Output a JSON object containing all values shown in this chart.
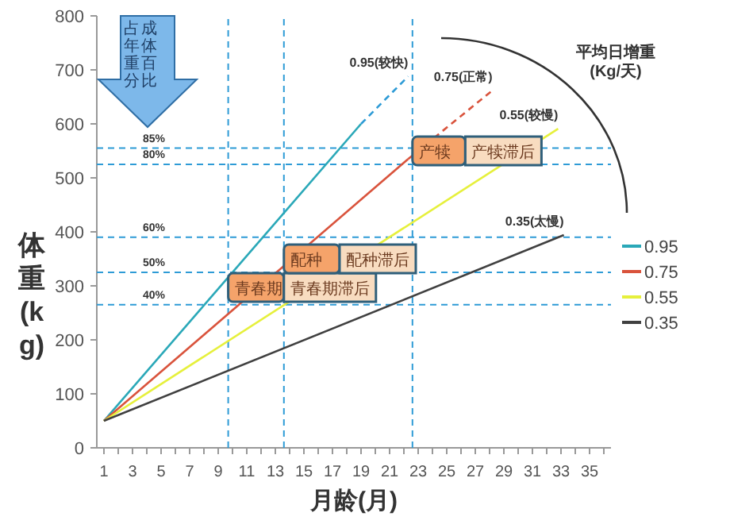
{
  "chart_data": {
    "type": "line",
    "xlabel": "月龄(月)",
    "ylabel": "体重(kg)",
    "xlim": [
      0.5,
      36.5
    ],
    "ylim": [
      0,
      800
    ],
    "xticks": [
      1,
      {
        "value": 2,
        "label": null
      },
      3,
      {
        "value": 4,
        "label": null
      },
      5,
      {
        "value": 6,
        "label": null
      },
      7,
      {
        "value": 8,
        "label": null
      },
      9,
      {
        "value": 10,
        "label": null
      },
      11,
      {
        "value": 12,
        "label": null
      },
      13,
      {
        "value": 14,
        "label": null
      },
      15,
      {
        "value": 16,
        "label": null
      },
      17,
      {
        "value": 18,
        "label": null
      },
      19,
      {
        "value": 20,
        "label": null
      },
      21,
      {
        "value": 22,
        "label": null
      },
      23,
      {
        "value": 24,
        "label": null
      },
      25,
      {
        "value": 26,
        "label": null
      },
      27,
      {
        "value": 28,
        "label": null
      },
      29,
      {
        "value": 30,
        "label": null
      },
      31,
      {
        "value": 32,
        "label": null
      },
      33,
      {
        "value": 34,
        "label": null
      },
      35,
      {
        "value": 36,
        "label": null
      }
    ],
    "yticks": [
      0,
      100,
      200,
      300,
      400,
      500,
      600,
      700,
      800
    ],
    "legend": "right",
    "grid": false,
    "series": [
      {
        "name": "0.95",
        "color": "#2aa8b8",
        "x": [
          1,
          19
        ],
        "values": [
          50,
          600
        ]
      },
      {
        "color": "#2e9bd6",
        "x": [
          19,
          22.3
        ],
        "values": [
          600,
          688
        ],
        "line_style": "dashed"
      },
      {
        "name": "0.75",
        "color": "#d9533c",
        "x": [
          1,
          22.3
        ],
        "values": [
          50,
          535
        ]
      },
      {
        "color": "#d9533c",
        "x": [
          22.3,
          28.2
        ],
        "values": [
          535,
          662
        ],
        "line_style": "dashed"
      },
      {
        "name": "0.55",
        "color": "#e6f03c",
        "x": [
          1,
          32.8
        ],
        "values": [
          50,
          591
        ]
      },
      {
        "name": "0.35",
        "color": "#404040",
        "x": [
          1,
          33.2
        ],
        "values": [
          50,
          394
        ]
      }
    ],
    "ref_lines": [
      {
        "axis": "y",
        "value": 555,
        "color": "#2e9bd6",
        "line_style": "dashed"
      },
      {
        "axis": "y",
        "value": 525,
        "color": "#2e9bd6",
        "line_style": "dashed"
      },
      {
        "axis": "y",
        "value": 390,
        "color": "#2e9bd6",
        "line_style": "dashed"
      },
      {
        "axis": "y",
        "value": 325,
        "color": "#2e9bd6",
        "line_style": "dashed"
      },
      {
        "axis": "y",
        "value": 265,
        "color": "#2e9bd6",
        "line_style": "dashed"
      },
      {
        "axis": "x",
        "value": 9.7,
        "color": "#2e9bd6",
        "line_style": "dashed"
      },
      {
        "axis": "x",
        "value": 13.6,
        "color": "#2e9bd6",
        "line_style": "dashed"
      },
      {
        "axis": "x",
        "value": 22.6,
        "color": "#2e9bd6",
        "line_style": "dashed"
      }
    ],
    "annotations": [
      {
        "text": "0.95(较快)",
        "x": 22.3,
        "y": 688
      },
      {
        "text": "0.75(正常)",
        "x": 28.2,
        "y": 662
      },
      {
        "text": "0.55(较慢)",
        "x": 32.8,
        "y": 591
      },
      {
        "text": "0.35(太慢)",
        "x": 33.2,
        "y": 394
      },
      {
        "text": "青春期",
        "x": 9.7,
        "y": 297
      },
      {
        "text": "青春期滞后",
        "x": 13.6,
        "y": 297
      },
      {
        "text": "配种",
        "x": 13.6,
        "y": 350
      },
      {
        "text": "配种滞后",
        "x": 17.5,
        "y": 350
      },
      {
        "text": "产犊",
        "x": 22.6,
        "y": 550
      },
      {
        "text": "产犊滞后",
        "x": 26.3,
        "y": 550
      },
      {
        "text": "85%",
        "x": 4.5,
        "y": 555
      },
      {
        "text": "80%",
        "x": 4.5,
        "y": 525
      },
      {
        "text": "60%",
        "x": 4.5,
        "y": 390
      },
      {
        "text": "50%",
        "x": 4.5,
        "y": 325
      },
      {
        "text": "40%",
        "x": 4.5,
        "y": 265
      },
      "平均日增重\n(Kg/天)",
      "占成年体重百分比"
    ]
  }
}
